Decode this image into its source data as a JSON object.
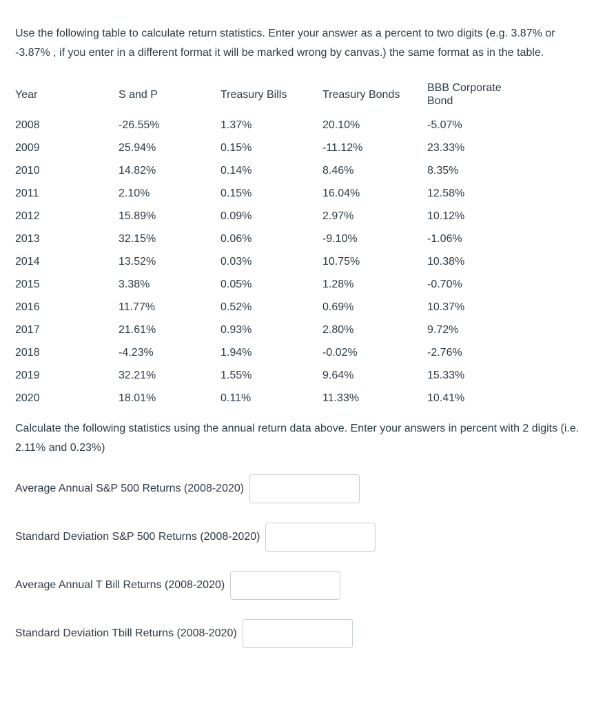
{
  "colors": {
    "text": "#2d3b45",
    "input_border": "#c7cdd1",
    "background": "#ffffff"
  },
  "intro": "Use the following table to calculate return statistics.  Enter your answer as a percent to two digits (e.g. 3.87%  or -3.87% , if you enter in a different format it will be marked wrong by canvas.)  the same format as in the table.",
  "table": {
    "headers": [
      "Year",
      "S and P",
      "Treasury Bills",
      "Treasury Bonds",
      "BBB Corporate Bond"
    ],
    "rows": [
      [
        "2008",
        "-26.55%",
        "1.37%",
        "20.10%",
        "-5.07%"
      ],
      [
        "2009",
        "25.94%",
        "0.15%",
        "-11.12%",
        "23.33%"
      ],
      [
        "2010",
        "14.82%",
        "0.14%",
        "8.46%",
        "8.35%"
      ],
      [
        "2011",
        "2.10%",
        "0.15%",
        "16.04%",
        "12.58%"
      ],
      [
        "2012",
        "15.89%",
        "0.09%",
        "2.97%",
        "10.12%"
      ],
      [
        "2013",
        "32.15%",
        "0.06%",
        "-9.10%",
        "-1.06%"
      ],
      [
        "2014",
        "13.52%",
        "0.03%",
        "10.75%",
        "10.38%"
      ],
      [
        "2015",
        "3.38%",
        "0.05%",
        "1.28%",
        "-0.70%"
      ],
      [
        "2016",
        "11.77%",
        "0.52%",
        "0.69%",
        "10.37%"
      ],
      [
        "2017",
        "21.61%",
        "0.93%",
        "2.80%",
        "9.72%"
      ],
      [
        "2018",
        "-4.23%",
        "1.94%",
        "-0.02%",
        "-2.76%"
      ],
      [
        "2019",
        "32.21%",
        "1.55%",
        "9.64%",
        "15.33%"
      ],
      [
        "2020",
        "18.01%",
        "0.11%",
        "11.33%",
        "10.41%"
      ]
    ]
  },
  "instructions": "Calculate the following statistics using the annual return data above.  Enter your answers in percent with 2 digits (i.e. 2.11% and 0.23%)",
  "questions": [
    {
      "label": "Average Annual S&P 500 Returns (2008-2020)",
      "value": ""
    },
    {
      "label": "Standard Deviation S&P 500 Returns (2008-2020)",
      "value": ""
    },
    {
      "label": "Average Annual T Bill Returns (2008-2020)",
      "value": ""
    },
    {
      "label": "Standard Deviation Tbill Returns (2008-2020)",
      "value": ""
    }
  ]
}
